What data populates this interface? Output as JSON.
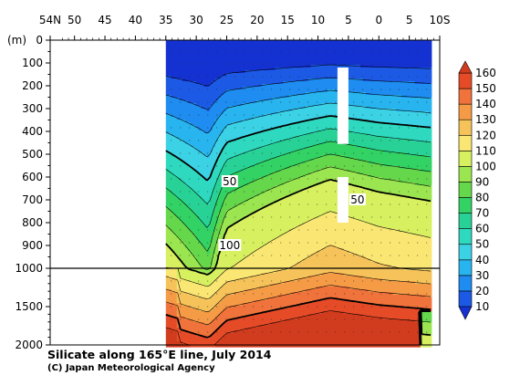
{
  "caption": {
    "title": "Silicate along 165°E line, July 2014",
    "credit": "(C) Japan Meteorological Agency"
  },
  "chart_data": {
    "type": "heatmap",
    "title": "Silicate along 165°E line, July 2014",
    "x_tick_labels": [
      "54N",
      "50",
      "45",
      "40",
      "35",
      "30",
      "25",
      "20",
      "15",
      "10",
      "5",
      "0",
      "5",
      "10S"
    ],
    "x_tick_lat": [
      54,
      50,
      45,
      40,
      35,
      30,
      25,
      20,
      15,
      10,
      5,
      0,
      -5,
      -10
    ],
    "xlim": [
      54,
      -10
    ],
    "y_unit_label": "(m)",
    "y_upper_ticks": [
      0,
      100,
      200,
      300,
      400,
      500,
      600,
      700,
      800,
      900,
      1000
    ],
    "y_lower_ticks": [
      1000,
      1500,
      2000
    ],
    "ylim": [
      0,
      2000
    ],
    "y_axis_break_depth": 1000,
    "colorbar": {
      "levels": [
        10,
        20,
        30,
        40,
        50,
        60,
        70,
        80,
        90,
        100,
        110,
        120,
        130,
        140,
        150,
        160
      ],
      "colors": [
        "#1432d2",
        "#1c5ae6",
        "#1e8cf0",
        "#28b4ee",
        "#3cd2e6",
        "#2ed9c0",
        "#28d296",
        "#32d264",
        "#64d74b",
        "#9be650",
        "#d7f05f",
        "#fae673",
        "#f5c35a",
        "#f59b46",
        "#f0733c",
        "#e64b28",
        "#d23c1e"
      ]
    },
    "contour_labels": [
      {
        "text": "50",
        "lat": 24.5,
        "depth": 620
      },
      {
        "text": "50",
        "lat": 3.5,
        "depth": 700
      },
      {
        "text": "100",
        "lat": 24.5,
        "depth": 900
      }
    ],
    "data_lat_range": [
      35,
      -8.5
    ],
    "missing_data_regions": [
      {
        "lat": [
          6.8,
          5.0
        ],
        "depth": [
          120,
          455
        ]
      },
      {
        "lat": [
          6.8,
          5.0
        ],
        "depth": [
          600,
          800
        ]
      }
    ]
  }
}
